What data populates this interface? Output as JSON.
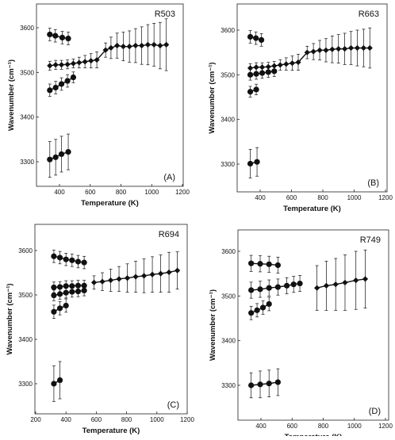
{
  "chart_data": [
    {
      "type": "scatter",
      "title": "R503",
      "panel_label": "(A)",
      "xlabel": "Temperature (K)",
      "ylabel": "Wavenumber (cm⁻¹)",
      "xlim": [
        250,
        1200
      ],
      "ylim": [
        3240,
        3640
      ],
      "xticks": [
        400,
        600,
        800,
        1000,
        1200
      ],
      "yticks": [
        3300,
        3400,
        3500,
        3600
      ],
      "series": [
        {
          "marker": "circle",
          "x": [
            337,
            373,
            418,
            457
          ],
          "y": [
            3585,
            3582,
            3578,
            3576
          ],
          "err": [
            14,
            14,
            14,
            14
          ]
        },
        {
          "marker": "diamond",
          "x": [
            337,
            375,
            413,
            452,
            490,
            528,
            566,
            605,
            643,
            700,
            735,
            775,
            815,
            855,
            895,
            935,
            975,
            1015,
            1055,
            1095
          ],
          "y": [
            3515,
            3517,
            3517,
            3518,
            3520,
            3522,
            3524,
            3526,
            3528,
            3550,
            3555,
            3560,
            3558,
            3558,
            3560,
            3560,
            3562,
            3562,
            3560,
            3562
          ],
          "err": [
            10,
            10,
            10,
            10,
            10,
            12,
            14,
            16,
            18,
            16,
            24,
            28,
            32,
            35,
            38,
            42,
            45,
            48,
            52,
            58
          ]
        },
        {
          "marker": "circle",
          "x": [
            337,
            375,
            413,
            452,
            490
          ],
          "y": [
            3460,
            3466,
            3474,
            3481,
            3489
          ],
          "err": [
            14,
            14,
            14,
            14,
            12
          ]
        },
        {
          "marker": "circle",
          "x": [
            337,
            375,
            413,
            457
          ],
          "y": [
            3305,
            3310,
            3317,
            3322
          ],
          "err": [
            40,
            40,
            40,
            40
          ]
        }
      ]
    },
    {
      "type": "scatter",
      "title": "R663",
      "panel_label": "(B)",
      "xlabel": "Temperature (K)",
      "ylabel": "Wavenumber (cm⁻¹)",
      "xlim": [
        250,
        1200
      ],
      "ylim": [
        3240,
        3640
      ],
      "xticks": [
        400,
        600,
        800,
        1000,
        1200
      ],
      "yticks": [
        3300,
        3400,
        3500,
        3600
      ],
      "series": [
        {
          "marker": "circle",
          "x": [
            337,
            373,
            408
          ],
          "y": [
            3585,
            3582,
            3578
          ],
          "err": [
            14,
            14,
            14
          ]
        },
        {
          "marker": "diamond",
          "x": [
            337,
            375,
            413,
            452,
            490,
            528,
            566,
            605,
            643,
            700,
            740,
            780,
            820,
            860,
            900,
            940,
            980,
            1020,
            1060,
            1100
          ],
          "y": [
            3515,
            3517,
            3517,
            3518,
            3520,
            3522,
            3524,
            3526,
            3528,
            3550,
            3552,
            3555,
            3555,
            3557,
            3558,
            3558,
            3560,
            3560,
            3560,
            3560
          ],
          "err": [
            10,
            10,
            10,
            10,
            10,
            12,
            14,
            16,
            18,
            14,
            18,
            22,
            26,
            30,
            32,
            35,
            37,
            40,
            42,
            45
          ]
        },
        {
          "marker": "circle",
          "x": [
            337,
            375,
            413,
            452,
            490
          ],
          "y": [
            3500,
            3502,
            3504,
            3506,
            3508
          ],
          "err": [
            12,
            12,
            12,
            12,
            12
          ]
        },
        {
          "marker": "circle",
          "x": [
            337,
            375
          ],
          "y": [
            3462,
            3467
          ],
          "err": [
            12,
            12
          ]
        },
        {
          "marker": "circle",
          "x": [
            337,
            380
          ],
          "y": [
            3301,
            3305
          ],
          "err": [
            32,
            32
          ]
        }
      ]
    },
    {
      "type": "scatter",
      "title": "R694",
      "panel_label": "(C)",
      "xlabel": "Temperature (K)",
      "ylabel": "Wavenumber (cm⁻¹)",
      "xlim": [
        250,
        1200
      ],
      "ylim": [
        3240,
        3640
      ],
      "xticks": [
        200,
        400,
        600,
        800,
        1000,
        1200
      ],
      "yticks": [
        3300,
        3400,
        3500,
        3600
      ],
      "series": [
        {
          "marker": "circle",
          "x": [
            320,
            360,
            400,
            440,
            480,
            520
          ],
          "y": [
            3587,
            3584,
            3580,
            3578,
            3575,
            3573
          ],
          "err": [
            14,
            14,
            14,
            14,
            14,
            14
          ]
        },
        {
          "marker": "circle",
          "x": [
            320,
            360,
            400,
            440,
            480,
            520
          ],
          "y": [
            3517,
            3518,
            3520,
            3520,
            3521,
            3521
          ],
          "err": [
            12,
            12,
            12,
            12,
            12,
            12
          ]
        },
        {
          "marker": "circle",
          "x": [
            320,
            360,
            400,
            440,
            480,
            520
          ],
          "y": [
            3499,
            3502,
            3505,
            3507,
            3508,
            3510
          ],
          "err": [
            12,
            12,
            12,
            12,
            12,
            12
          ]
        },
        {
          "marker": "circle",
          "x": [
            320,
            360,
            400
          ],
          "y": [
            3462,
            3470,
            3476
          ],
          "err": [
            15,
            15,
            15
          ]
        },
        {
          "marker": "circle",
          "x": [
            320,
            360
          ],
          "y": [
            3300,
            3308
          ],
          "err": [
            40,
            42
          ]
        },
        {
          "marker": "diamond",
          "x": [
            585,
            640,
            695,
            750,
            805,
            860,
            915,
            970,
            1025,
            1080,
            1135
          ],
          "y": [
            3528,
            3530,
            3533,
            3536,
            3538,
            3541,
            3543,
            3546,
            3548,
            3551,
            3555
          ],
          "err": [
            15,
            20,
            25,
            28,
            32,
            35,
            38,
            40,
            42,
            45,
            42
          ]
        }
      ]
    },
    {
      "type": "scatter",
      "title": "R749",
      "panel_label": "(D)",
      "xlabel": "Temperature (K)",
      "ylabel": "Wavenumber (cm⁻¹)",
      "xlim": [
        250,
        1200
      ],
      "ylim": [
        3240,
        3640
      ],
      "xticks": [
        400,
        600,
        800,
        1000,
        1200
      ],
      "yticks": [
        3300,
        3400,
        3500,
        3600
      ],
      "series": [
        {
          "marker": "circle",
          "x": [
            337,
            395,
            452,
            509
          ],
          "y": [
            3573,
            3572,
            3571,
            3569
          ],
          "err": [
            18,
            18,
            18,
            18
          ]
        },
        {
          "marker": "circle",
          "x": [
            337,
            395,
            452,
            509,
            566,
            610,
            650
          ],
          "y": [
            3513,
            3515,
            3518,
            3520,
            3523,
            3526,
            3528
          ],
          "err": [
            18,
            18,
            18,
            18,
            18,
            18,
            18
          ]
        },
        {
          "marker": "circle",
          "x": [
            337,
            375,
            413,
            452
          ],
          "y": [
            3462,
            3468,
            3474,
            3482
          ],
          "err": [
            15,
            15,
            15,
            15
          ]
        },
        {
          "marker": "circle",
          "x": [
            337,
            395,
            452,
            509
          ],
          "y": [
            3300,
            3302,
            3304,
            3307
          ],
          "err": [
            28,
            30,
            30,
            30
          ]
        },
        {
          "marker": "diamond",
          "x": [
            760,
            820,
            880,
            940,
            1010,
            1070
          ],
          "y": [
            3518,
            3523,
            3526,
            3530,
            3535,
            3538
          ],
          "err": [
            50,
            55,
            58,
            62,
            65,
            65
          ]
        }
      ]
    }
  ],
  "colors": {
    "marker": "#111111",
    "errorbar": "#111111",
    "axis": "#222222"
  }
}
